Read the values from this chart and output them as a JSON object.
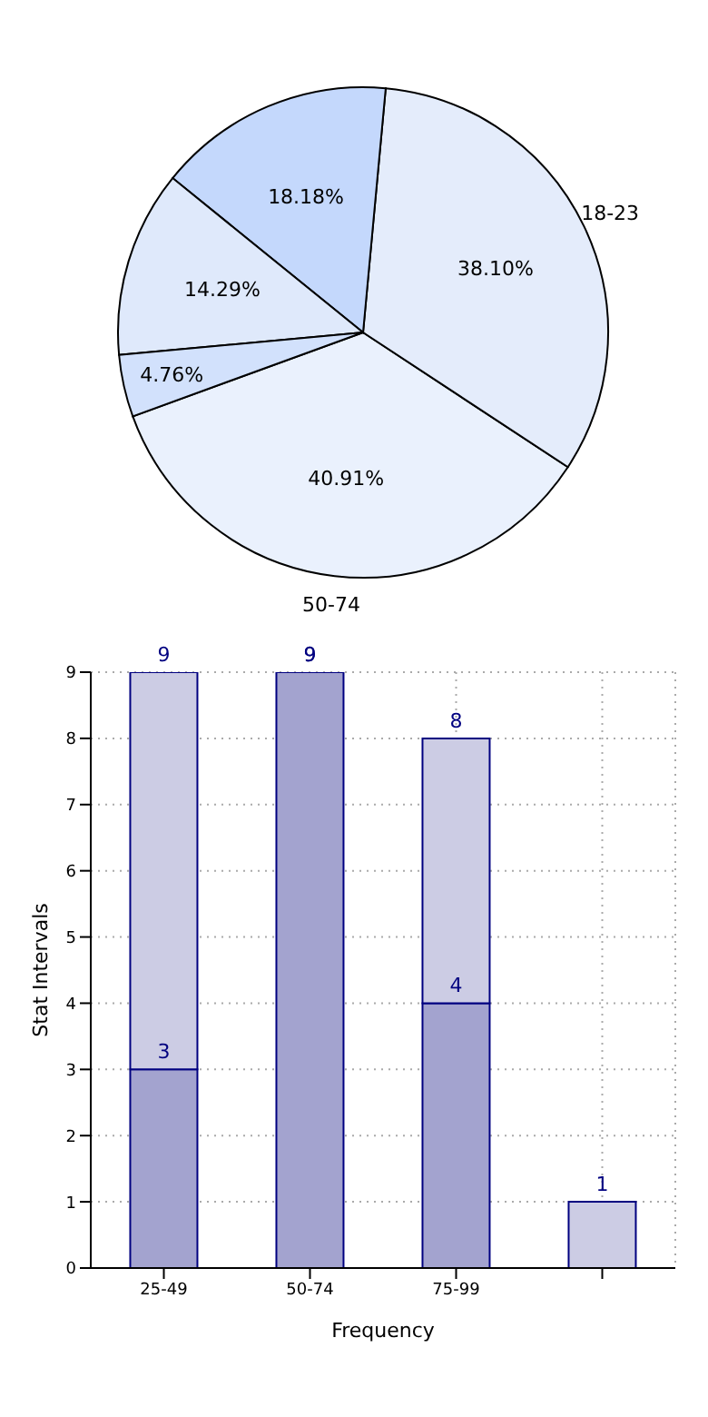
{
  "chart_data": [
    {
      "type": "pie",
      "categories": [
        "50-74",
        "18-23",
        null,
        null,
        null
      ],
      "values": [
        40.91,
        38.1,
        18.18,
        14.29,
        4.76
      ],
      "value_labels": [
        "40.91%",
        "38.10%",
        "18.18%",
        "14.29%",
        "4.76%"
      ],
      "colors": [
        "#eaf1fd",
        "#e4ecfb",
        "#c4d8fc",
        "#dfe9fb",
        "#d2e1fc"
      ]
    },
    {
      "type": "bar",
      "xlabel": "Frequency",
      "ylabel": "Stat Intervals",
      "stacked": true,
      "categories": [
        "25-49",
        "50-74",
        "75-99",
        null
      ],
      "series": [
        {
          "color": "#a3a3cf",
          "values": [
            3,
            9,
            4,
            null
          ],
          "value_labels": [
            "3",
            "9",
            "4",
            null
          ]
        },
        {
          "color": "#cccce4",
          "values": [
            6,
            null,
            4,
            1
          ]
        }
      ],
      "totals": [
        "9",
        "9",
        "8",
        "1"
      ],
      "ylim": [
        0,
        9
      ],
      "yticks": [
        0,
        1,
        2,
        3,
        4,
        5,
        6,
        7,
        8,
        9
      ],
      "grid": true
    }
  ]
}
